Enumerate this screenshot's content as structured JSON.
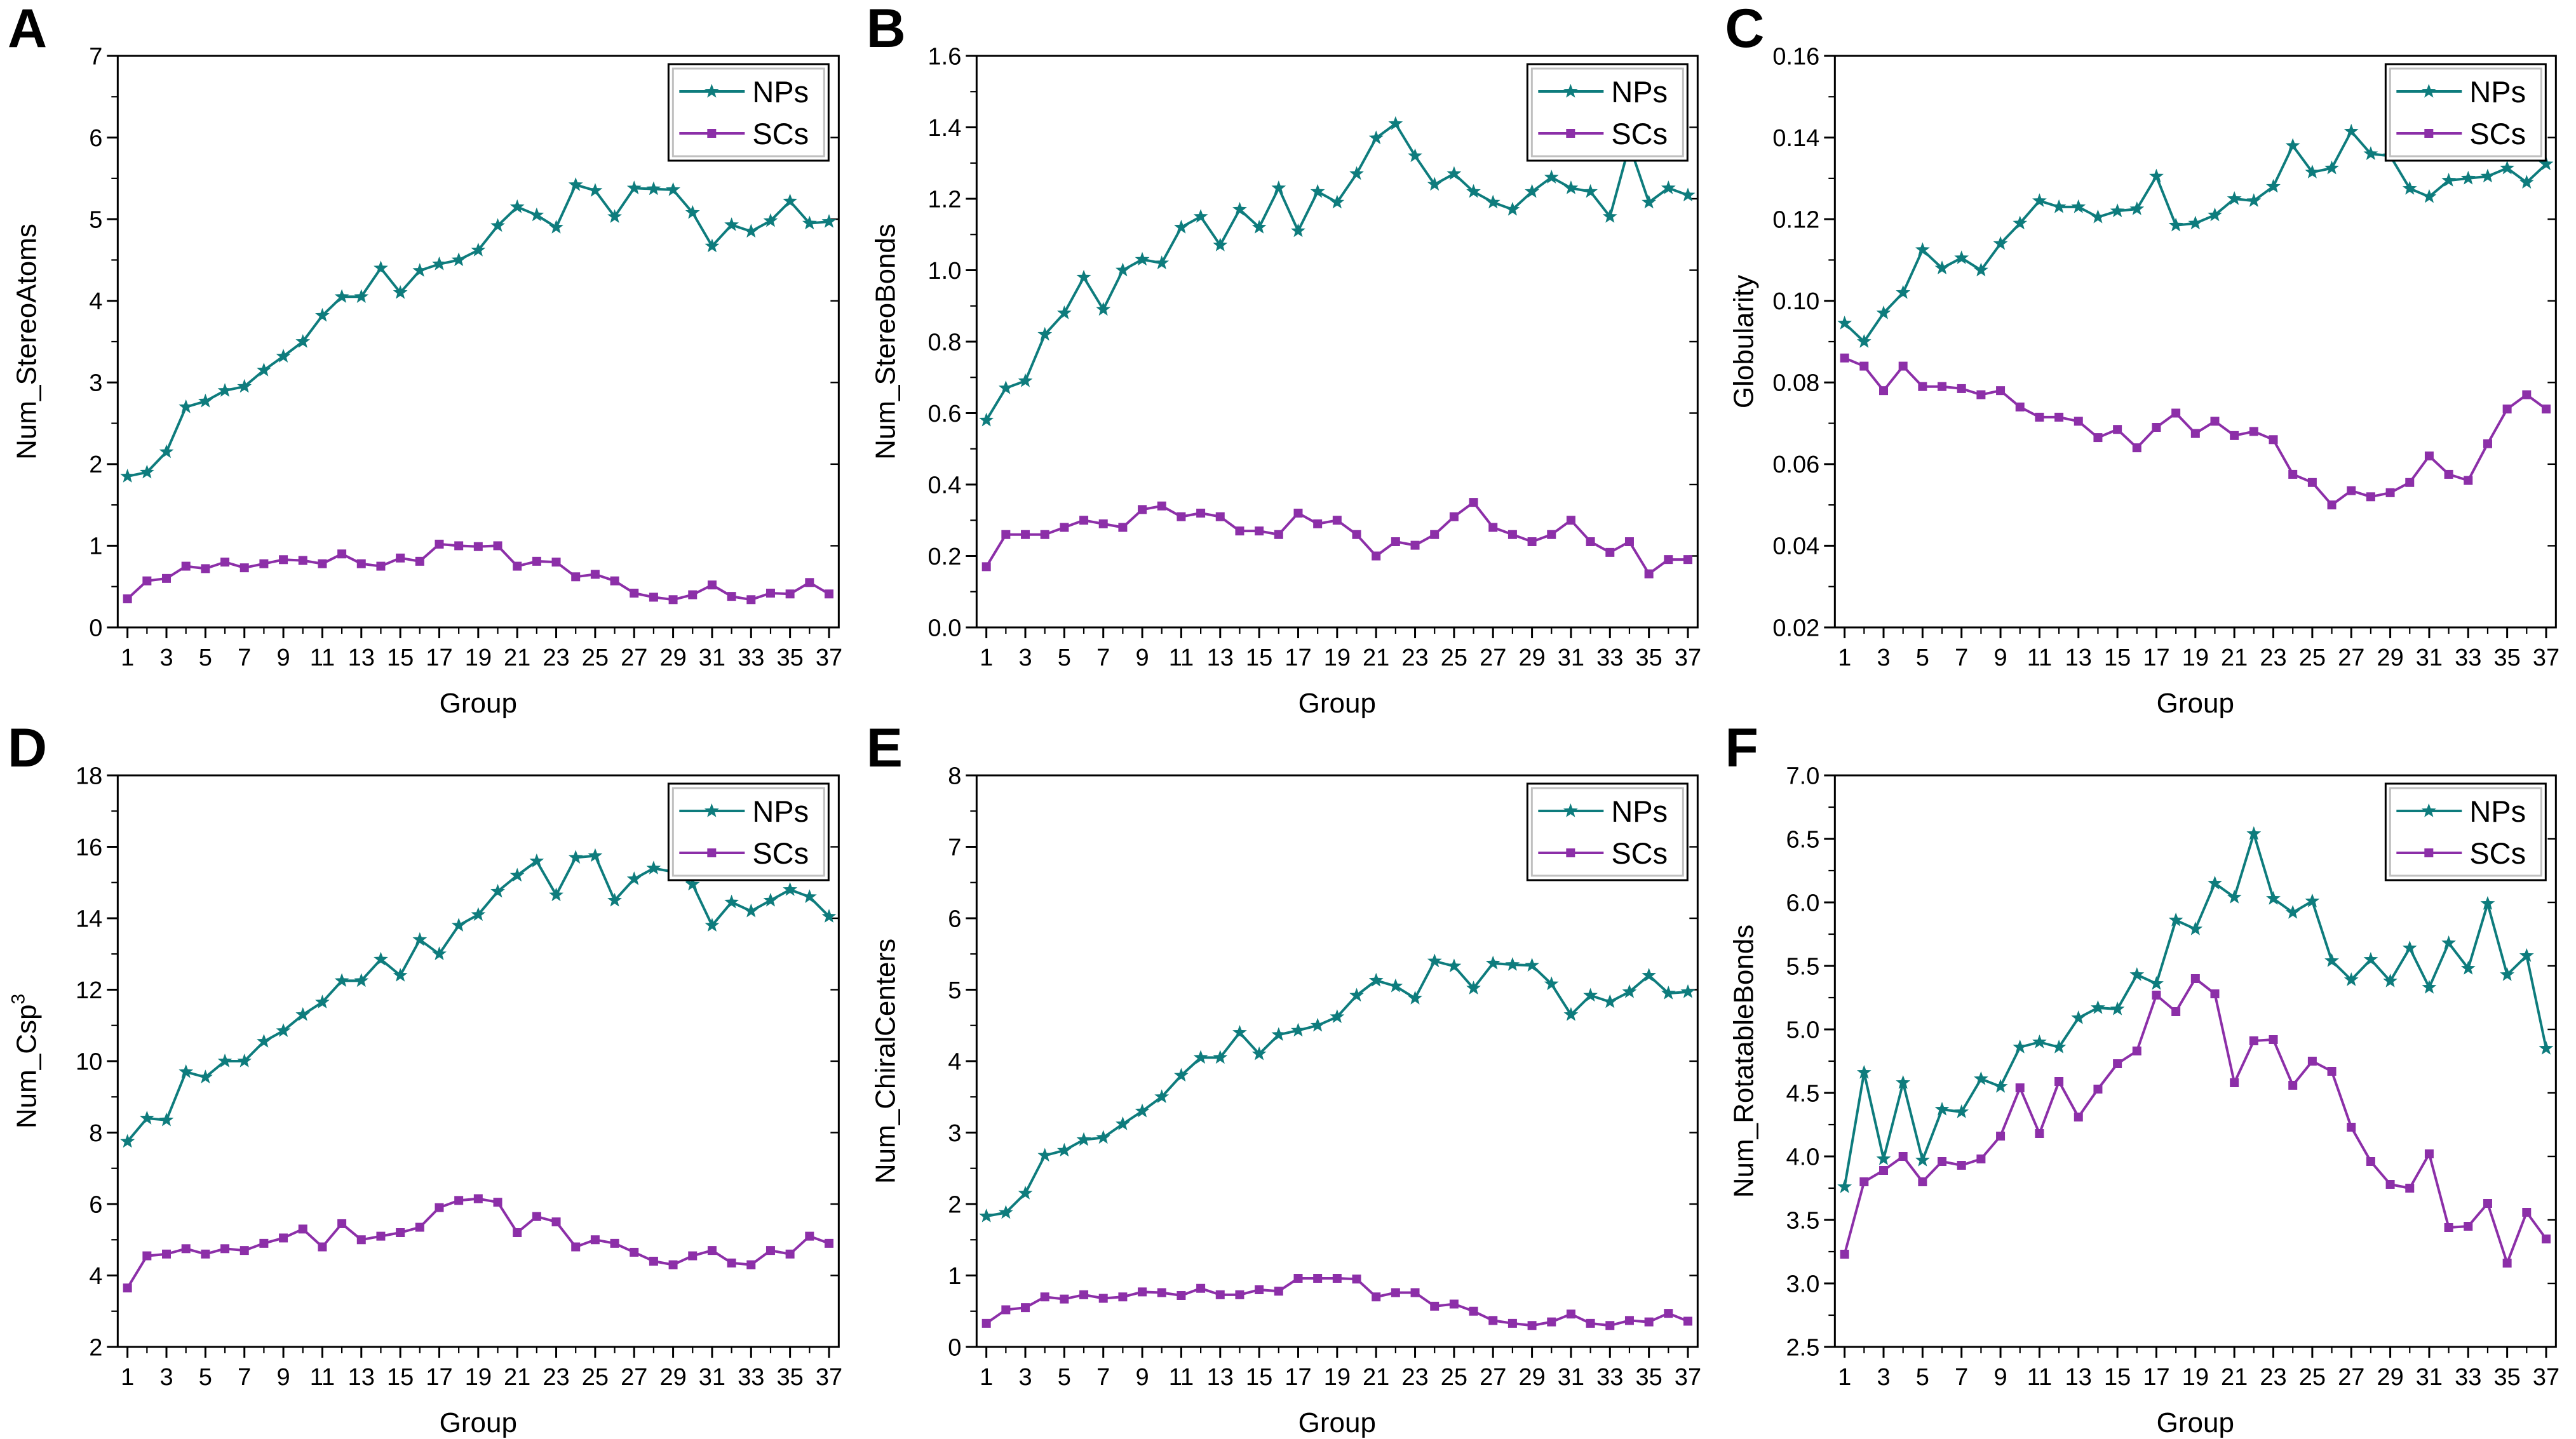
{
  "figure": {
    "background": "#ffffff",
    "xlabel": "Group",
    "groups_min": 1,
    "groups_max": 37
  },
  "colors": {
    "nps": "#0e7c7d",
    "scs": "#8c2fa8",
    "axis": "#000000",
    "legend_inner_border": "#c0c0c0"
  },
  "chart_data": [
    {
      "panel": "A",
      "type": "line",
      "ylabel": "Num_StereoAtoms",
      "xlabel": "Group",
      "ylim": [
        0,
        7
      ],
      "ytick_step": 1,
      "ytick_decimals": 0,
      "xticks": [
        1,
        3,
        5,
        7,
        9,
        11,
        13,
        15,
        17,
        19,
        21,
        23,
        25,
        27,
        29,
        31,
        33,
        35,
        37
      ],
      "legend_position": "top-right",
      "series": [
        {
          "name": "NPs",
          "color_key": "nps",
          "marker": "star",
          "values": [
            1.85,
            1.9,
            2.15,
            2.7,
            2.77,
            2.9,
            2.95,
            3.15,
            3.32,
            3.5,
            3.82,
            4.05,
            4.05,
            4.4,
            4.1,
            4.37,
            4.45,
            4.5,
            4.62,
            4.92,
            5.15,
            5.05,
            4.9,
            5.42,
            5.35,
            5.03,
            5.38,
            5.37,
            5.36,
            5.08,
            4.67,
            4.93,
            4.85,
            4.98,
            5.22,
            4.95,
            4.97
          ]
        },
        {
          "name": "SCs",
          "color_key": "scs",
          "marker": "square",
          "values": [
            0.35,
            0.57,
            0.6,
            0.75,
            0.72,
            0.8,
            0.73,
            0.78,
            0.83,
            0.82,
            0.78,
            0.9,
            0.78,
            0.75,
            0.85,
            0.81,
            1.02,
            1.0,
            0.99,
            1.0,
            0.75,
            0.81,
            0.8,
            0.62,
            0.65,
            0.57,
            0.42,
            0.37,
            0.34,
            0.4,
            0.52,
            0.38,
            0.34,
            0.42,
            0.41,
            0.55,
            0.41
          ]
        }
      ]
    },
    {
      "panel": "B",
      "type": "line",
      "ylabel": "Num_StereoBonds",
      "xlabel": "Group",
      "ylim": [
        0,
        1.6
      ],
      "ytick_step": 0.2,
      "ytick_decimals": 1,
      "xticks": [
        1,
        3,
        5,
        7,
        9,
        11,
        13,
        15,
        17,
        19,
        21,
        23,
        25,
        27,
        29,
        31,
        33,
        35,
        37
      ],
      "legend_position": "top-right",
      "series": [
        {
          "name": "NPs",
          "color_key": "nps",
          "marker": "star",
          "values": [
            0.58,
            0.67,
            0.69,
            0.82,
            0.88,
            0.98,
            0.89,
            1.0,
            1.03,
            1.02,
            1.12,
            1.15,
            1.07,
            1.17,
            1.12,
            1.23,
            1.11,
            1.22,
            1.19,
            1.27,
            1.37,
            1.41,
            1.32,
            1.24,
            1.27,
            1.22,
            1.19,
            1.17,
            1.22,
            1.26,
            1.23,
            1.22,
            1.15,
            1.35,
            1.19,
            1.23,
            1.21
          ]
        },
        {
          "name": "SCs",
          "color_key": "scs",
          "marker": "square",
          "values": [
            0.17,
            0.26,
            0.26,
            0.26,
            0.28,
            0.3,
            0.29,
            0.28,
            0.33,
            0.34,
            0.31,
            0.32,
            0.31,
            0.27,
            0.27,
            0.26,
            0.32,
            0.29,
            0.3,
            0.26,
            0.2,
            0.24,
            0.23,
            0.26,
            0.31,
            0.35,
            0.28,
            0.26,
            0.24,
            0.26,
            0.3,
            0.24,
            0.21,
            0.24,
            0.15,
            0.19,
            0.19
          ]
        }
      ]
    },
    {
      "panel": "C",
      "type": "line",
      "ylabel": "Globularity",
      "xlabel": "Group",
      "ylim": [
        0.02,
        0.16
      ],
      "ytick_step": 0.02,
      "ytick_decimals": 2,
      "xticks": [
        1,
        3,
        5,
        7,
        9,
        11,
        13,
        15,
        17,
        19,
        21,
        23,
        25,
        27,
        29,
        31,
        33,
        35,
        37
      ],
      "legend_position": "top-right",
      "series": [
        {
          "name": "NPs",
          "color_key": "nps",
          "marker": "star",
          "values": [
            0.0945,
            0.09,
            0.097,
            0.102,
            0.1125,
            0.108,
            0.1105,
            0.1075,
            0.114,
            0.119,
            0.1245,
            0.123,
            0.123,
            0.1205,
            0.122,
            0.1225,
            0.1305,
            0.1185,
            0.119,
            0.121,
            0.125,
            0.1245,
            0.128,
            0.138,
            0.1315,
            0.1325,
            0.1415,
            0.136,
            0.1355,
            0.1275,
            0.1255,
            0.1295,
            0.13,
            0.1305,
            0.1325,
            0.129,
            0.1335
          ]
        },
        {
          "name": "SCs",
          "color_key": "scs",
          "marker": "square",
          "values": [
            0.086,
            0.084,
            0.078,
            0.084,
            0.079,
            0.079,
            0.0785,
            0.077,
            0.078,
            0.074,
            0.0715,
            0.0715,
            0.0705,
            0.0665,
            0.0685,
            0.064,
            0.069,
            0.0725,
            0.0675,
            0.0705,
            0.067,
            0.068,
            0.066,
            0.0575,
            0.0555,
            0.05,
            0.0535,
            0.052,
            0.053,
            0.0555,
            0.062,
            0.0575,
            0.056,
            0.065,
            0.0735,
            0.077,
            0.0735
          ]
        }
      ]
    },
    {
      "panel": "D",
      "type": "line",
      "ylabel": "Num_Csp³",
      "xlabel": "Group",
      "ylim": [
        2,
        18
      ],
      "ytick_step": 2,
      "ytick_decimals": 0,
      "xticks": [
        1,
        3,
        5,
        7,
        9,
        11,
        13,
        15,
        17,
        19,
        21,
        23,
        25,
        27,
        29,
        31,
        33,
        35,
        37
      ],
      "legend_position": "top-right",
      "series": [
        {
          "name": "NPs",
          "color_key": "nps",
          "marker": "star",
          "values": [
            7.75,
            8.4,
            8.35,
            9.7,
            9.55,
            10.0,
            10.0,
            10.55,
            10.85,
            11.3,
            11.65,
            12.25,
            12.25,
            12.85,
            12.4,
            13.4,
            13.0,
            13.8,
            14.1,
            14.75,
            15.2,
            15.6,
            14.65,
            15.7,
            15.75,
            14.5,
            15.1,
            15.4,
            15.3,
            14.95,
            13.8,
            14.45,
            14.2,
            14.5,
            14.8,
            14.6,
            14.05
          ]
        },
        {
          "name": "SCs",
          "color_key": "scs",
          "marker": "square",
          "values": [
            3.65,
            4.55,
            4.6,
            4.75,
            4.6,
            4.75,
            4.7,
            4.9,
            5.05,
            5.3,
            4.8,
            5.45,
            5.0,
            5.1,
            5.2,
            5.35,
            5.9,
            6.1,
            6.15,
            6.05,
            5.2,
            5.65,
            5.5,
            4.8,
            5.0,
            4.9,
            4.65,
            4.4,
            4.3,
            4.55,
            4.7,
            4.35,
            4.3,
            4.7,
            4.6,
            5.1,
            4.9
          ]
        }
      ]
    },
    {
      "panel": "E",
      "type": "line",
      "ylabel": "Num_ChiralCenters",
      "xlabel": "Group",
      "ylim": [
        0,
        8
      ],
      "ytick_step": 1,
      "ytick_decimals": 0,
      "xticks": [
        1,
        3,
        5,
        7,
        9,
        11,
        13,
        15,
        17,
        19,
        21,
        23,
        25,
        27,
        29,
        31,
        33,
        35,
        37
      ],
      "legend_position": "top-right",
      "series": [
        {
          "name": "NPs",
          "color_key": "nps",
          "marker": "star",
          "values": [
            1.83,
            1.88,
            2.15,
            2.68,
            2.75,
            2.9,
            2.93,
            3.12,
            3.3,
            3.5,
            3.8,
            4.05,
            4.05,
            4.4,
            4.1,
            4.37,
            4.43,
            4.5,
            4.62,
            4.92,
            5.13,
            5.05,
            4.88,
            5.4,
            5.33,
            5.02,
            5.37,
            5.35,
            5.34,
            5.08,
            4.65,
            4.92,
            4.83,
            4.97,
            5.2,
            4.95,
            4.97
          ]
        },
        {
          "name": "SCs",
          "color_key": "scs",
          "marker": "square",
          "values": [
            0.33,
            0.52,
            0.55,
            0.7,
            0.67,
            0.73,
            0.68,
            0.7,
            0.77,
            0.76,
            0.72,
            0.82,
            0.73,
            0.73,
            0.8,
            0.78,
            0.96,
            0.96,
            0.96,
            0.95,
            0.7,
            0.76,
            0.76,
            0.57,
            0.6,
            0.5,
            0.37,
            0.33,
            0.3,
            0.35,
            0.46,
            0.33,
            0.3,
            0.37,
            0.35,
            0.47,
            0.36
          ]
        }
      ]
    },
    {
      "panel": "F",
      "type": "line",
      "ylabel": "Num_RotatableBonds",
      "xlabel": "Group",
      "ylim": [
        2.5,
        7.0
      ],
      "ytick_step": 0.5,
      "ytick_decimals": 1,
      "xticks": [
        1,
        3,
        5,
        7,
        9,
        11,
        13,
        15,
        17,
        19,
        21,
        23,
        25,
        27,
        29,
        31,
        33,
        35,
        37
      ],
      "legend_position": "top-right",
      "series": [
        {
          "name": "NPs",
          "color_key": "nps",
          "marker": "star",
          "values": [
            3.76,
            4.66,
            3.98,
            4.58,
            3.97,
            4.37,
            4.35,
            4.61,
            4.55,
            4.86,
            4.9,
            4.86,
            5.09,
            5.17,
            5.16,
            5.43,
            5.36,
            5.86,
            5.79,
            6.15,
            6.04,
            6.54,
            6.03,
            5.92,
            6.01,
            5.54,
            5.39,
            5.55,
            5.38,
            5.64,
            5.33,
            5.68,
            5.48,
            5.99,
            5.43,
            5.58,
            4.85
          ]
        },
        {
          "name": "SCs",
          "color_key": "scs",
          "marker": "square",
          "values": [
            3.23,
            3.8,
            3.89,
            4.0,
            3.8,
            3.96,
            3.93,
            3.98,
            4.16,
            4.54,
            4.18,
            4.59,
            4.31,
            4.53,
            4.73,
            4.83,
            5.27,
            5.14,
            5.4,
            5.28,
            4.58,
            4.91,
            4.92,
            4.56,
            4.75,
            4.67,
            4.23,
            3.96,
            3.78,
            3.75,
            4.02,
            3.44,
            3.45,
            3.63,
            3.16,
            3.56,
            3.35
          ]
        }
      ]
    }
  ]
}
